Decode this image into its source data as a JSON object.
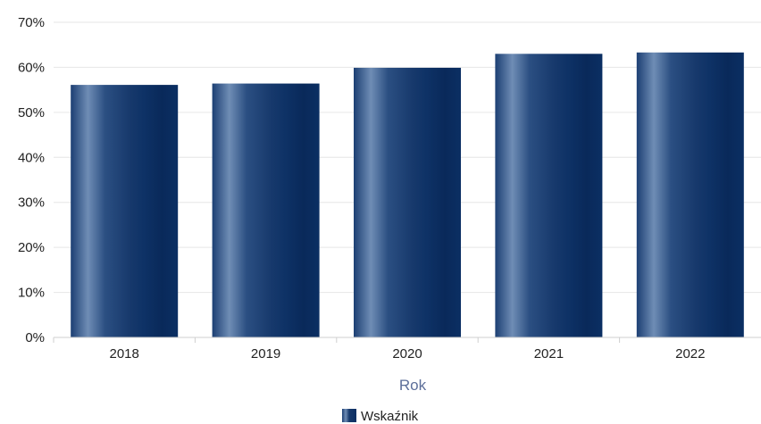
{
  "chart_data": {
    "type": "bar",
    "categories": [
      "2018",
      "2019",
      "2020",
      "2021",
      "2022"
    ],
    "series": [
      {
        "name": "Wskaźnik",
        "values": [
          56.1,
          56.4,
          59.9,
          63.0,
          63.3
        ]
      }
    ],
    "xlabel": "Rok",
    "ylabel": "",
    "ylim": [
      0,
      70
    ],
    "yticks": [
      0,
      10,
      20,
      30,
      40,
      50,
      60,
      70
    ],
    "ytick_labels": [
      "0%",
      "10%",
      "20%",
      "30%",
      "40%",
      "50%",
      "60%",
      "70%"
    ],
    "grid": true,
    "legend": "bottom-center",
    "colors": {
      "bar_dark": "#0b2f63",
      "bar_mid": "#24487c",
      "bar_light": "#6f8db5",
      "grid": "#e6e6e6",
      "axis": "#cfcfcf",
      "axis_title": "#5d6f9a"
    }
  }
}
